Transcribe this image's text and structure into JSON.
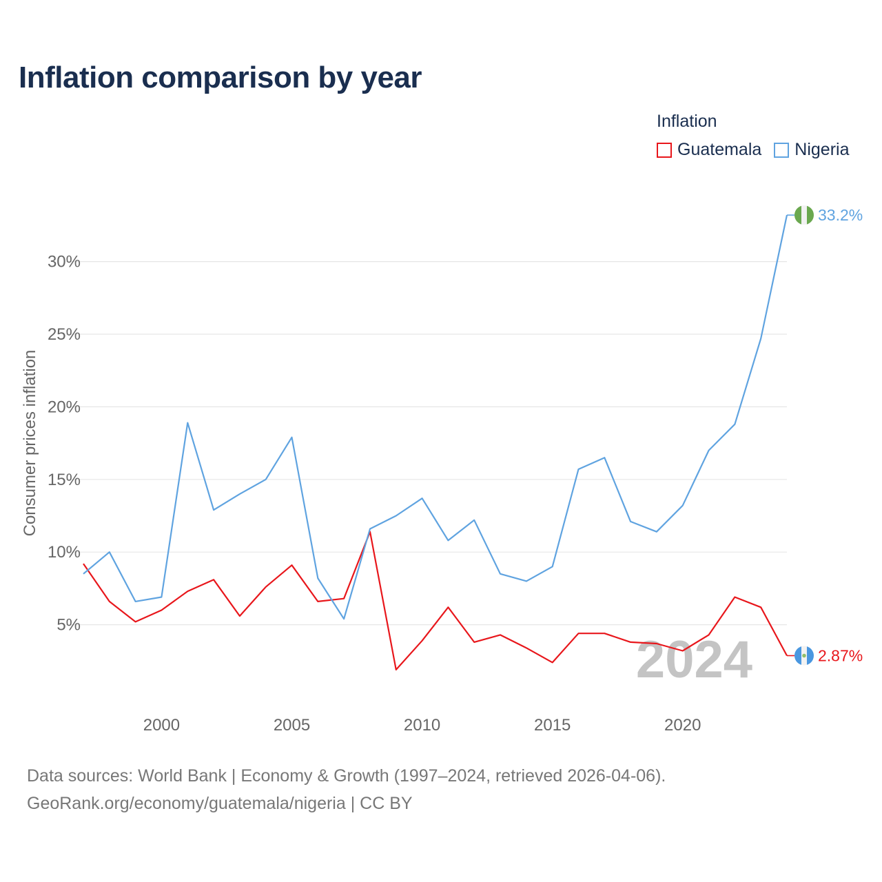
{
  "title": "Inflation comparison by year",
  "legend": {
    "title": "Inflation",
    "items": [
      {
        "label": "Guatemala",
        "color": "#e8161b"
      },
      {
        "label": "Nigeria",
        "color": "#5fa3e0"
      }
    ]
  },
  "footer": {
    "line1": "Data sources: World Bank | Economy & Growth (1997–2024, retrieved 2026-04-06).",
    "line2": "GeoRank.org/economy/guatemala/nigeria | CC BY"
  },
  "chart_data": {
    "type": "line",
    "title": "Inflation comparison by year",
    "xlabel": "",
    "ylabel": "Consumer prices inflation",
    "x": [
      1997,
      1998,
      1999,
      2000,
      2001,
      2002,
      2003,
      2004,
      2005,
      2006,
      2007,
      2008,
      2009,
      2010,
      2011,
      2012,
      2013,
      2014,
      2015,
      2016,
      2017,
      2018,
      2019,
      2020,
      2021,
      2022,
      2023,
      2024
    ],
    "xlim": [
      1997,
      2024
    ],
    "ylim": [
      0,
      36
    ],
    "x_ticks": [
      2000,
      2005,
      2010,
      2015,
      2020
    ],
    "x_tick_labels": [
      "2000",
      "2005",
      "2010",
      "2015",
      "2020"
    ],
    "y_ticks": [
      5,
      10,
      15,
      20,
      25,
      30
    ],
    "y_tick_labels": [
      "5%",
      "10%",
      "15%",
      "20%",
      "25%",
      "30%"
    ],
    "grid": true,
    "legend_position": "top-right",
    "current_year_label": "2024",
    "series": [
      {
        "name": "Guatemala",
        "color": "#e8161b",
        "end_label": "2.87%",
        "flag": "guatemala-flag",
        "values": [
          9.2,
          6.6,
          5.2,
          6.0,
          7.3,
          8.1,
          5.6,
          7.6,
          9.1,
          6.6,
          6.8,
          11.4,
          1.9,
          3.9,
          6.2,
          3.8,
          4.3,
          3.4,
          2.4,
          4.4,
          4.4,
          3.8,
          3.7,
          3.2,
          4.3,
          6.9,
          6.2,
          2.87
        ]
      },
      {
        "name": "Nigeria",
        "color": "#5fa3e0",
        "end_label": "33.2%",
        "flag": "nigeria-flag",
        "values": [
          8.5,
          10.0,
          6.6,
          6.9,
          18.9,
          12.9,
          14.0,
          15.0,
          17.9,
          8.2,
          5.4,
          11.6,
          12.5,
          13.7,
          10.8,
          12.2,
          8.5,
          8.0,
          9.0,
          15.7,
          16.5,
          12.1,
          11.4,
          13.2,
          17.0,
          18.8,
          24.7,
          33.2
        ]
      }
    ]
  }
}
